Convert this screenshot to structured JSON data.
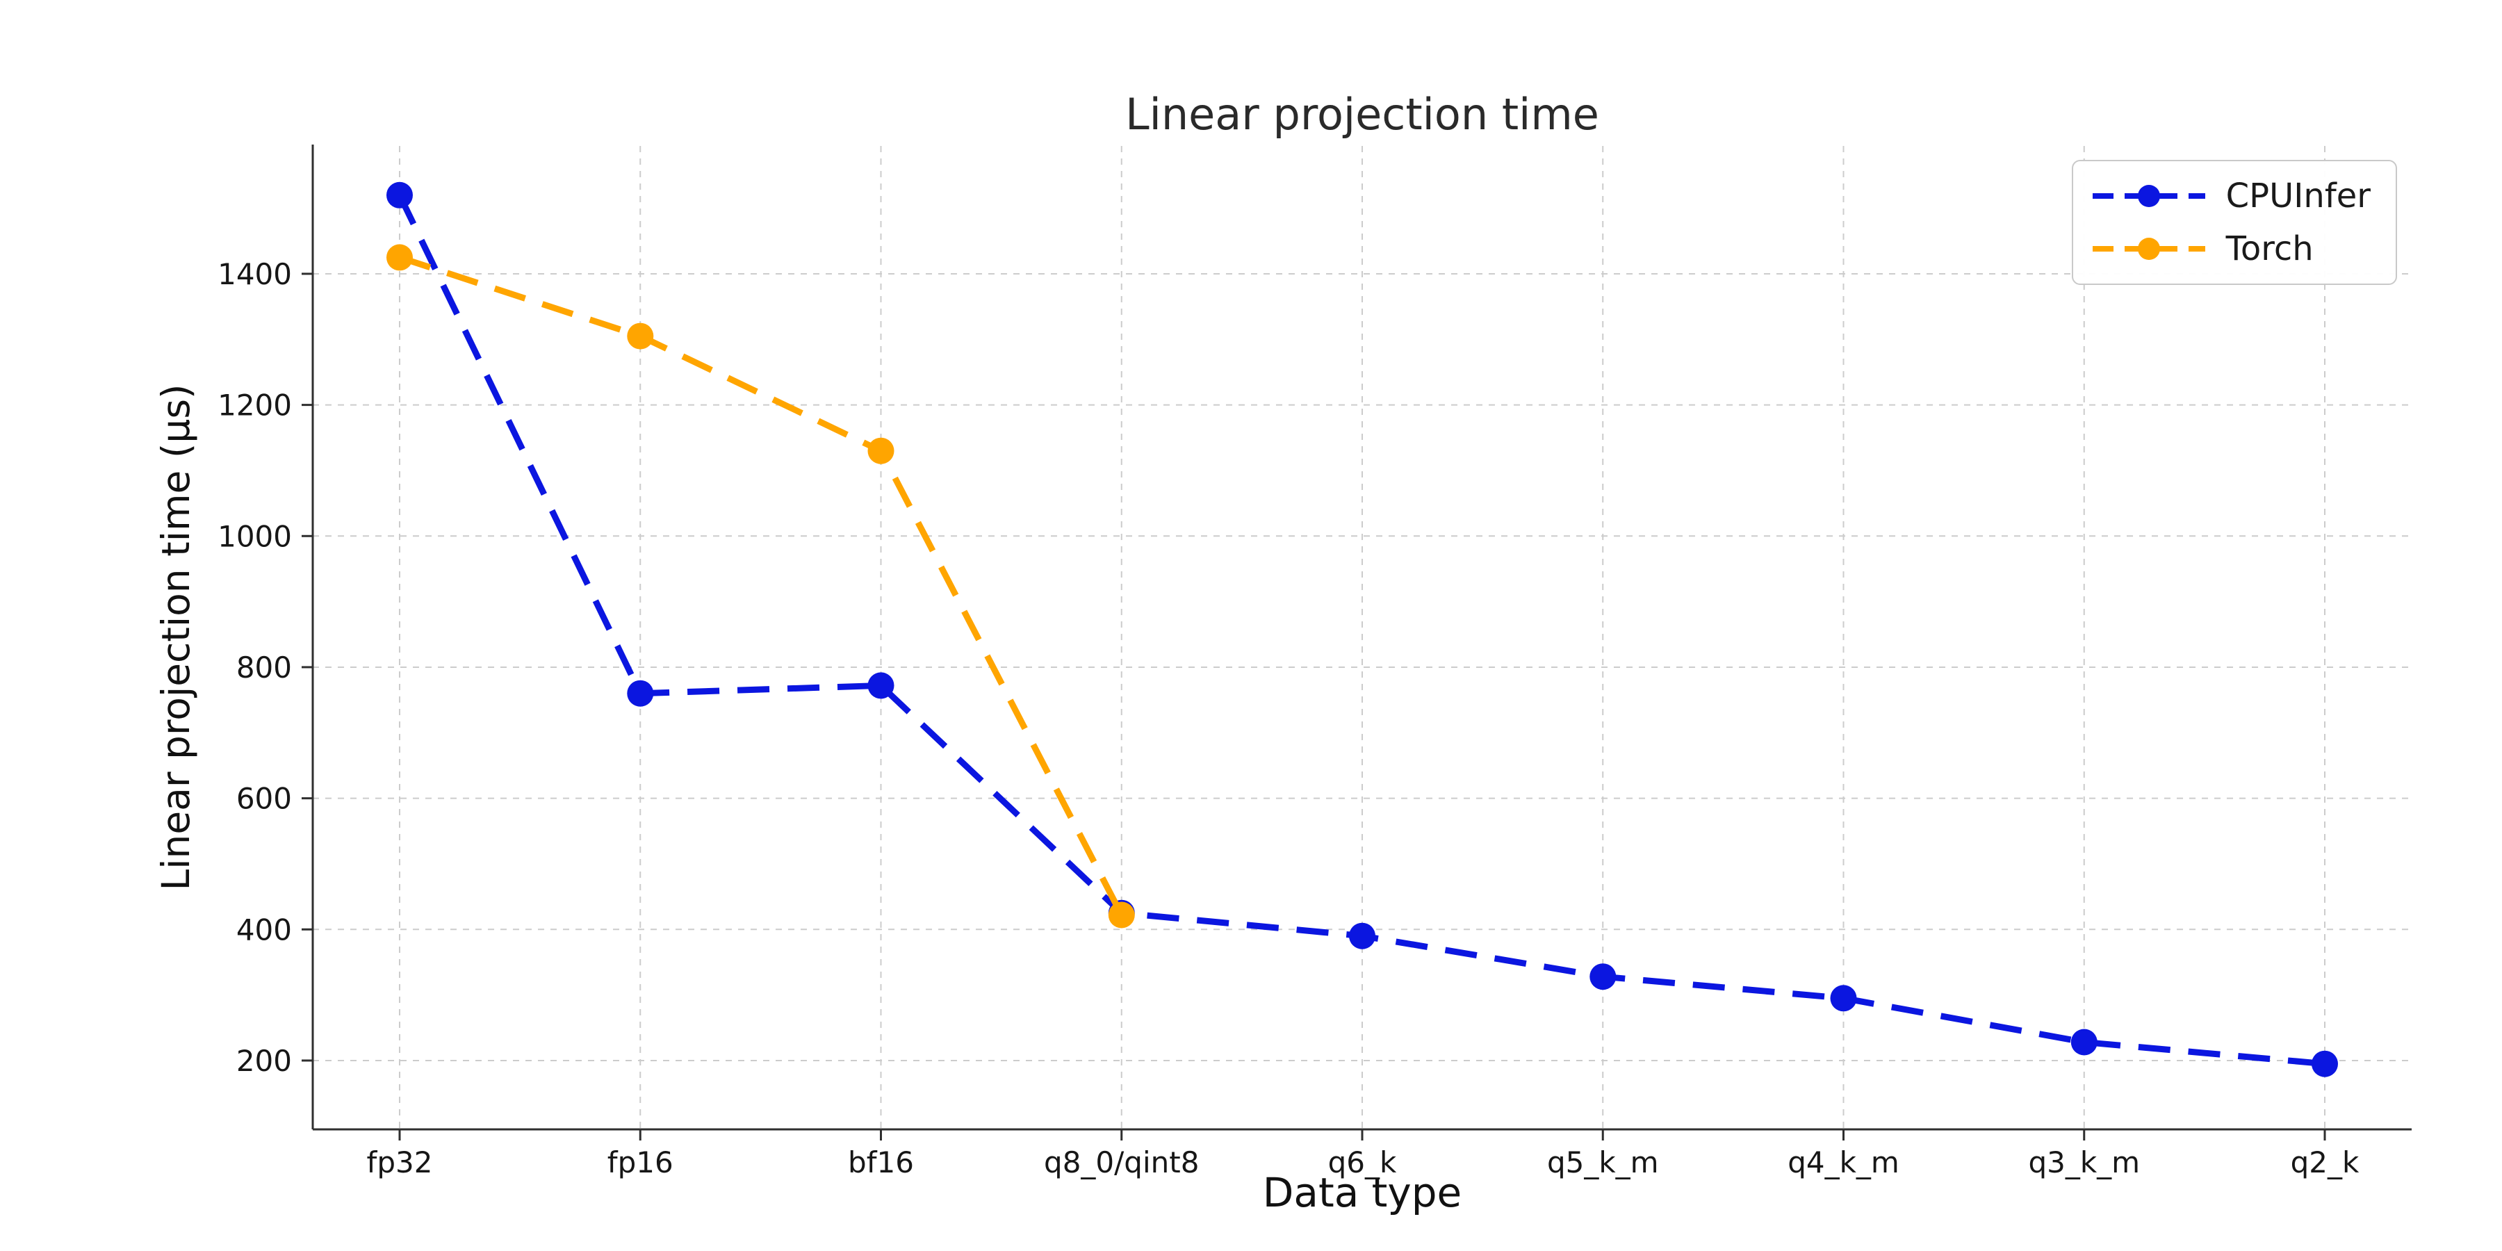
{
  "chart_data": {
    "type": "line",
    "title": "Linear projection time",
    "xlabel": "Data type",
    "ylabel": "Linear projection time (µs)",
    "categories": [
      "fp32",
      "fp16",
      "bf16",
      "q8_0/qint8",
      "q6_k",
      "q5_k_m",
      "q4_k_m",
      "q3_k_m",
      "q2_k"
    ],
    "series": [
      {
        "name": "CPUInfer",
        "color": "#0b16e0",
        "values": [
          1520,
          760,
          772,
          425,
          390,
          328,
          295,
          228,
          195
        ]
      },
      {
        "name": "Torch",
        "color": "#ffa500",
        "values": [
          1425,
          1305,
          1130,
          422,
          null,
          null,
          null,
          null,
          null
        ]
      }
    ],
    "yticks": [
      200,
      400,
      600,
      800,
      1000,
      1200,
      1400
    ],
    "ylim": [
      95,
      1595
    ],
    "grid": true,
    "line_style": "dashed",
    "marker": "circle",
    "legend_position": "upper right",
    "grid_color": "#cccccc",
    "text_color": "#1a1a1a"
  }
}
